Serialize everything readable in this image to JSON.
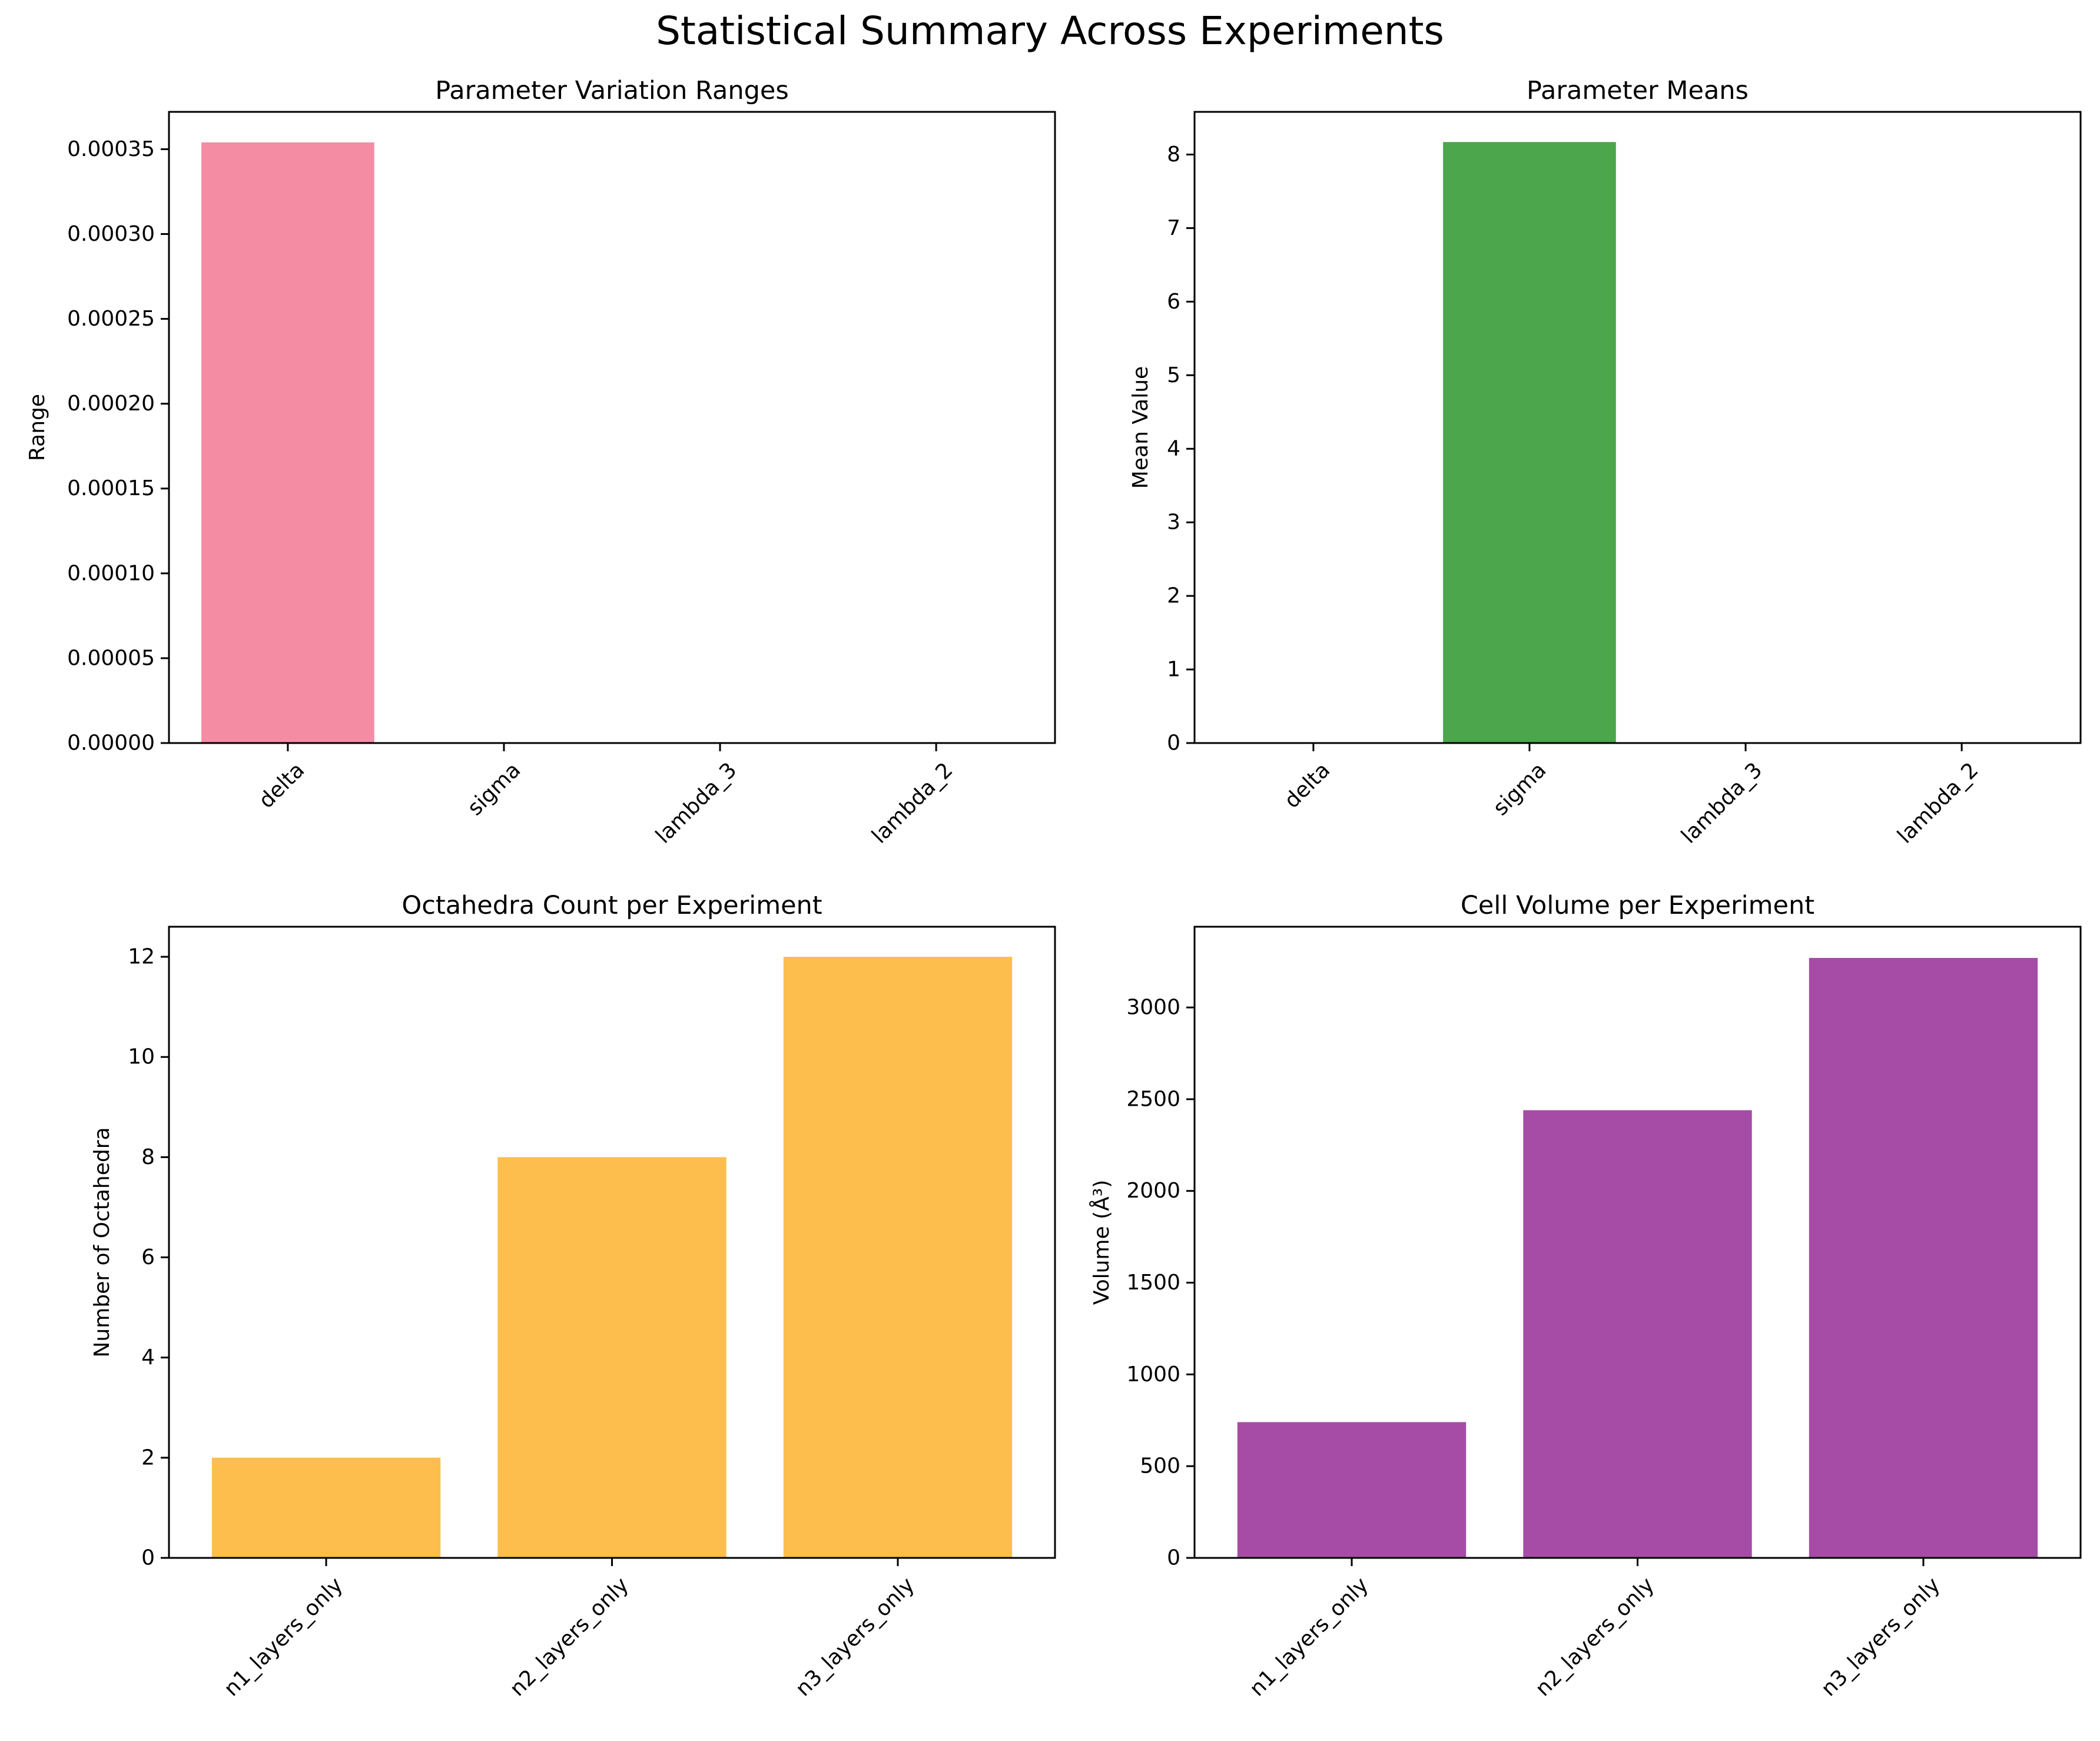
{
  "figure_title": "Statistical Summary Across Experiments",
  "chart_data": [
    {
      "type": "bar",
      "title": "Parameter Variation Ranges",
      "xlabel": "",
      "ylabel": "Range",
      "categories": [
        "delta",
        "sigma",
        "lambda_3",
        "lambda_2"
      ],
      "values": [
        0.000354,
        0,
        0,
        0
      ],
      "ylim": [
        0,
        0.000372
      ],
      "yticks": [
        0,
        5e-05,
        0.0001,
        0.00015,
        0.0002,
        0.00025,
        0.0003,
        0.00035
      ],
      "ytick_labels": [
        "0.00000",
        "0.00005",
        "0.00010",
        "0.00015",
        "0.00020",
        "0.00025",
        "0.00030",
        "0.00035"
      ],
      "xtick_rotation": 45,
      "color": "#f48ca4",
      "grid": false
    },
    {
      "type": "bar",
      "title": "Parameter Means",
      "xlabel": "",
      "ylabel": "Mean Value",
      "categories": [
        "delta",
        "sigma",
        "lambda_3",
        "lambda_2"
      ],
      "values": [
        0,
        8.17,
        0,
        0
      ],
      "ylim": [
        0,
        8.58
      ],
      "yticks": [
        0,
        1,
        2,
        3,
        4,
        5,
        6,
        7,
        8
      ],
      "ytick_labels": [
        "0",
        "1",
        "2",
        "3",
        "4",
        "5",
        "6",
        "7",
        "8"
      ],
      "xtick_rotation": 45,
      "color": "#4ca64c",
      "grid": false
    },
    {
      "type": "bar",
      "title": "Octahedra Count per Experiment",
      "xlabel": "",
      "ylabel": "Number of Octahedra",
      "categories": [
        "n1_layers_only",
        "n2_layers_only",
        "n3_layers_only"
      ],
      "values": [
        2,
        8,
        12
      ],
      "ylim": [
        0,
        12.6
      ],
      "yticks": [
        0,
        2,
        4,
        6,
        8,
        10,
        12
      ],
      "ytick_labels": [
        "0",
        "2",
        "4",
        "6",
        "8",
        "10",
        "12"
      ],
      "xtick_rotation": 45,
      "color": "#fdbe4e",
      "grid": false
    },
    {
      "type": "bar",
      "title": "Cell Volume per Experiment",
      "xlabel": "",
      "ylabel": "Volume (Å³)",
      "categories": [
        "n1_layers_only",
        "n2_layers_only",
        "n3_layers_only"
      ],
      "values": [
        740,
        2440,
        3270
      ],
      "ylim": [
        0,
        3440
      ],
      "yticks": [
        0,
        500,
        1000,
        1500,
        2000,
        2500,
        3000
      ],
      "ytick_labels": [
        "0",
        "500",
        "1000",
        "1500",
        "2000",
        "2500",
        "3000"
      ],
      "xtick_rotation": 45,
      "color": "#a64ca6",
      "grid": false
    }
  ]
}
